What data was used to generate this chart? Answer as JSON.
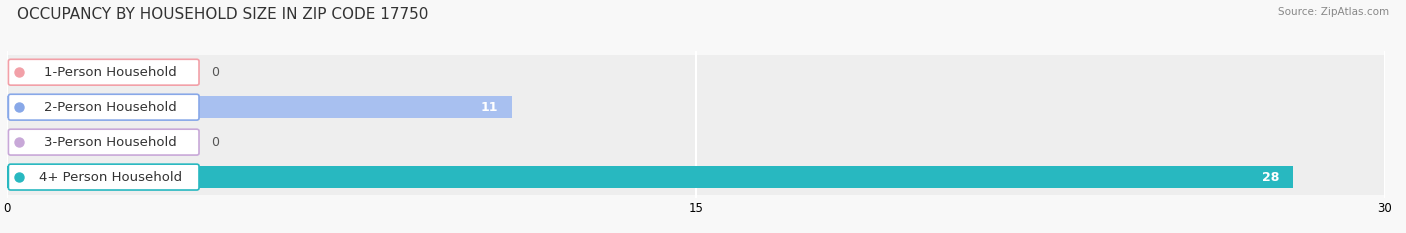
{
  "title": "OCCUPANCY BY HOUSEHOLD SIZE IN ZIP CODE 17750",
  "source": "Source: ZipAtlas.com",
  "categories": [
    "1-Person Household",
    "2-Person Household",
    "3-Person Household",
    "4+ Person Household"
  ],
  "values": [
    0,
    11,
    0,
    28
  ],
  "bar_colors": [
    "#F2A0A8",
    "#A8C0F0",
    "#C8A8D8",
    "#28B8C0"
  ],
  "label_border_colors": [
    "#F2A0A8",
    "#88A8E8",
    "#C8A8D8",
    "#28B8C0"
  ],
  "row_bg_colors": [
    "#F0F0F0",
    "#F0F0F0",
    "#F0F0F0",
    "#F0F0F0"
  ],
  "xlim": [
    0,
    30
  ],
  "xticks": [
    0,
    15,
    30
  ],
  "figsize": [
    14.06,
    2.33
  ],
  "dpi": 100,
  "title_fontsize": 11,
  "label_fontsize": 9.5,
  "value_fontsize": 9,
  "bar_height": 0.62,
  "background_color": "#F8F8F8"
}
